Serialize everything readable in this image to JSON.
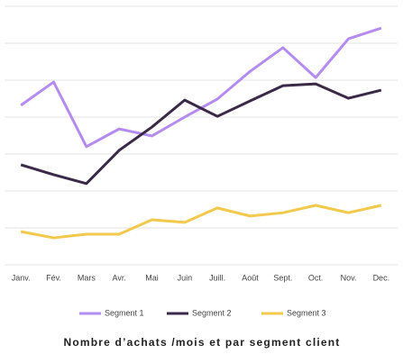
{
  "chart_data": {
    "type": "line",
    "title": "Nombre d’achats /mois et par segment client",
    "categories": [
      "Janv.",
      "Fév.",
      "Mars",
      "Avr.",
      "Mai",
      "Juin",
      "Juill.",
      "Août",
      "Sept.",
      "Oct.",
      "Nov.",
      "Dec."
    ],
    "series": [
      {
        "name": "Segment 1",
        "color": "#b48cf0",
        "values": [
          4.32,
          4.95,
          3.2,
          3.68,
          3.49,
          4.0,
          4.49,
          5.24,
          5.88,
          5.07,
          6.12,
          6.41
        ]
      },
      {
        "name": "Segment 2",
        "color": "#3a2a48",
        "values": [
          2.71,
          2.44,
          2.2,
          3.1,
          3.73,
          4.46,
          4.02,
          4.44,
          4.85,
          4.9,
          4.51,
          4.73
        ]
      },
      {
        "name": "Segment 3",
        "color": "#f2c94c",
        "values": [
          0.9,
          0.73,
          0.83,
          0.83,
          1.22,
          1.15,
          1.54,
          1.32,
          1.41,
          1.61,
          1.41,
          1.61
        ]
      }
    ],
    "ylim": [
      0,
      7
    ],
    "yticks": [
      0,
      1,
      2,
      3,
      4,
      5,
      6,
      7
    ],
    "grid": true
  }
}
